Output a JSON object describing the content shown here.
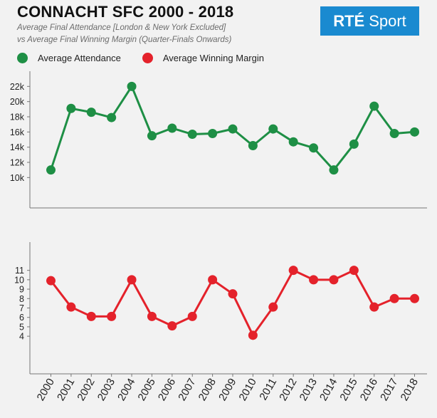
{
  "header": {
    "title": "CONNACHT SFC 2000 - 2018",
    "subtitle_line1": "Average Final Attendance [London & New York Excluded]",
    "subtitle_line2": "vs Average Final Winning Margin (Quarter-Finals Onwards)"
  },
  "logo": {
    "text_bold": "RTÉ",
    "text_regular": "Sport",
    "brand_color": "#1a8ad0"
  },
  "legend": {
    "items": [
      {
        "label": "Average Attendance",
        "color": "#1e8f45"
      },
      {
        "label": "Average Winning Margin",
        "color": "#e4222b"
      }
    ]
  },
  "chart_data": [
    {
      "type": "line",
      "title": "",
      "x": [
        "2000",
        "2001",
        "2002",
        "2003",
        "2004",
        "2005",
        "2006",
        "2007",
        "2008",
        "2009",
        "2010",
        "2011",
        "2012",
        "2013",
        "2014",
        "2015",
        "2016",
        "2017",
        "2018"
      ],
      "series": [
        {
          "name": "Average Attendance",
          "color": "#1e8f45",
          "values": [
            11000,
            19100,
            18600,
            17900,
            22000,
            15500,
            16500,
            15700,
            15800,
            16400,
            14200,
            16400,
            14700,
            13900,
            11000,
            14400,
            19400,
            15800,
            16000
          ]
        }
      ],
      "y_ticks": [
        "10k",
        "12k",
        "14k",
        "16k",
        "18k",
        "20k",
        "22k"
      ],
      "ylim": [
        6000,
        24000
      ],
      "grid": false,
      "legend_position": "top-left"
    },
    {
      "type": "line",
      "title": "",
      "x": [
        "2000",
        "2001",
        "2002",
        "2003",
        "2004",
        "2005",
        "2006",
        "2007",
        "2008",
        "2009",
        "2010",
        "2011",
        "2012",
        "2013",
        "2014",
        "2015",
        "2016",
        "2017",
        "2018"
      ],
      "series": [
        {
          "name": "Average Winning Margin",
          "color": "#e4222b",
          "values": [
            9.9,
            7.1,
            6.1,
            6.1,
            10,
            6.1,
            5.1,
            6.1,
            10,
            8.5,
            4.1,
            7.1,
            11,
            10,
            10,
            11,
            7.1,
            8,
            8
          ]
        }
      ],
      "y_ticks": [
        "4",
        "5",
        "6",
        "7",
        "8",
        "9",
        "10",
        "11"
      ],
      "ylim": [
        0,
        14
      ],
      "grid": false,
      "legend_position": "top-left"
    }
  ]
}
